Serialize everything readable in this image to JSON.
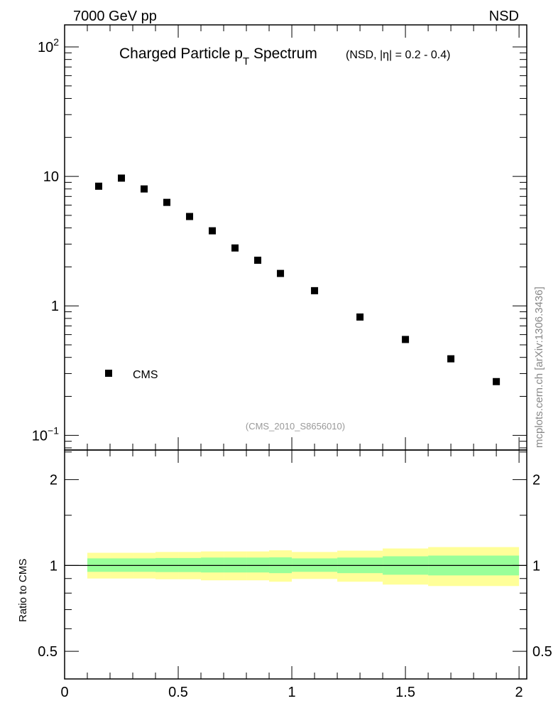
{
  "header": {
    "energy_label": "7000 GeV pp",
    "process_label": "NSD"
  },
  "side_label": "mcplots.cern.ch [arXiv:1306.3436]",
  "analysis_id": "(CMS_2010_S8656010)",
  "chart_data": [
    {
      "type": "scatter",
      "title": "Charged Particle p",
      "title_sub": "T",
      "title_tail": " Spectrum",
      "subtitle": "(NSD, |η| = 0.2 - 0.4)",
      "xlabel": "",
      "ylabel": "",
      "yscale": "log",
      "xlim": [
        0,
        2.034
      ],
      "ylim": [
        0.077,
        148
      ],
      "ytick_labels": [
        {
          "v": 100,
          "base": "10",
          "exp": "2"
        },
        {
          "v": 10,
          "base": "10",
          "exp": ""
        },
        {
          "v": 1,
          "base": "1",
          "exp": ""
        },
        {
          "v": 0.1,
          "base": "10",
          "exp": "−1"
        }
      ],
      "legend": {
        "placement": "bottom-left",
        "entries": [
          "CMS"
        ]
      },
      "series": [
        {
          "name": "CMS",
          "marker": "square",
          "color": "#000000",
          "x": [
            0.15,
            0.25,
            0.35,
            0.45,
            0.55,
            0.65,
            0.75,
            0.85,
            0.95,
            1.1,
            1.3,
            1.5,
            1.7,
            1.9
          ],
          "y": [
            8.4,
            9.7,
            8.0,
            6.3,
            4.9,
            3.8,
            2.8,
            2.25,
            1.78,
            1.31,
            0.82,
            0.55,
            0.39,
            0.26
          ]
        }
      ]
    },
    {
      "type": "area",
      "ylabel": "Ratio to CMS",
      "yscale": "log",
      "xlim": [
        0,
        2.034
      ],
      "ylim": [
        0.4,
        2.54
      ],
      "xtick_labels": [
        "0",
        "0.5",
        "1",
        "1.5",
        "2"
      ],
      "ytick_labels": [
        "0.5",
        "1",
        "2"
      ],
      "reference_line": 1,
      "bins": [
        [
          0.1,
          0.2
        ],
        [
          0.2,
          0.3
        ],
        [
          0.3,
          0.4
        ],
        [
          0.4,
          0.5
        ],
        [
          0.5,
          0.6
        ],
        [
          0.6,
          0.7
        ],
        [
          0.7,
          0.8
        ],
        [
          0.8,
          0.9
        ],
        [
          0.9,
          1.0
        ],
        [
          1.0,
          1.2
        ],
        [
          1.2,
          1.4
        ],
        [
          1.4,
          1.6
        ],
        [
          1.6,
          2.0
        ]
      ],
      "band_outer": {
        "color": "#ffff99",
        "low": [
          0.9,
          0.9,
          0.9,
          0.895,
          0.895,
          0.887,
          0.887,
          0.887,
          0.877,
          0.897,
          0.877,
          0.857,
          0.847
        ],
        "high": [
          1.108,
          1.108,
          1.108,
          1.115,
          1.115,
          1.12,
          1.12,
          1.12,
          1.13,
          1.115,
          1.127,
          1.147,
          1.16
        ]
      },
      "band_inner": {
        "color": "#99ff99",
        "low": [
          0.95,
          0.95,
          0.95,
          0.948,
          0.948,
          0.945,
          0.945,
          0.945,
          0.94,
          0.95,
          0.94,
          0.928,
          0.923
        ],
        "high": [
          1.059,
          1.059,
          1.059,
          1.062,
          1.062,
          1.066,
          1.066,
          1.066,
          1.068,
          1.059,
          1.066,
          1.077,
          1.083
        ]
      }
    }
  ]
}
